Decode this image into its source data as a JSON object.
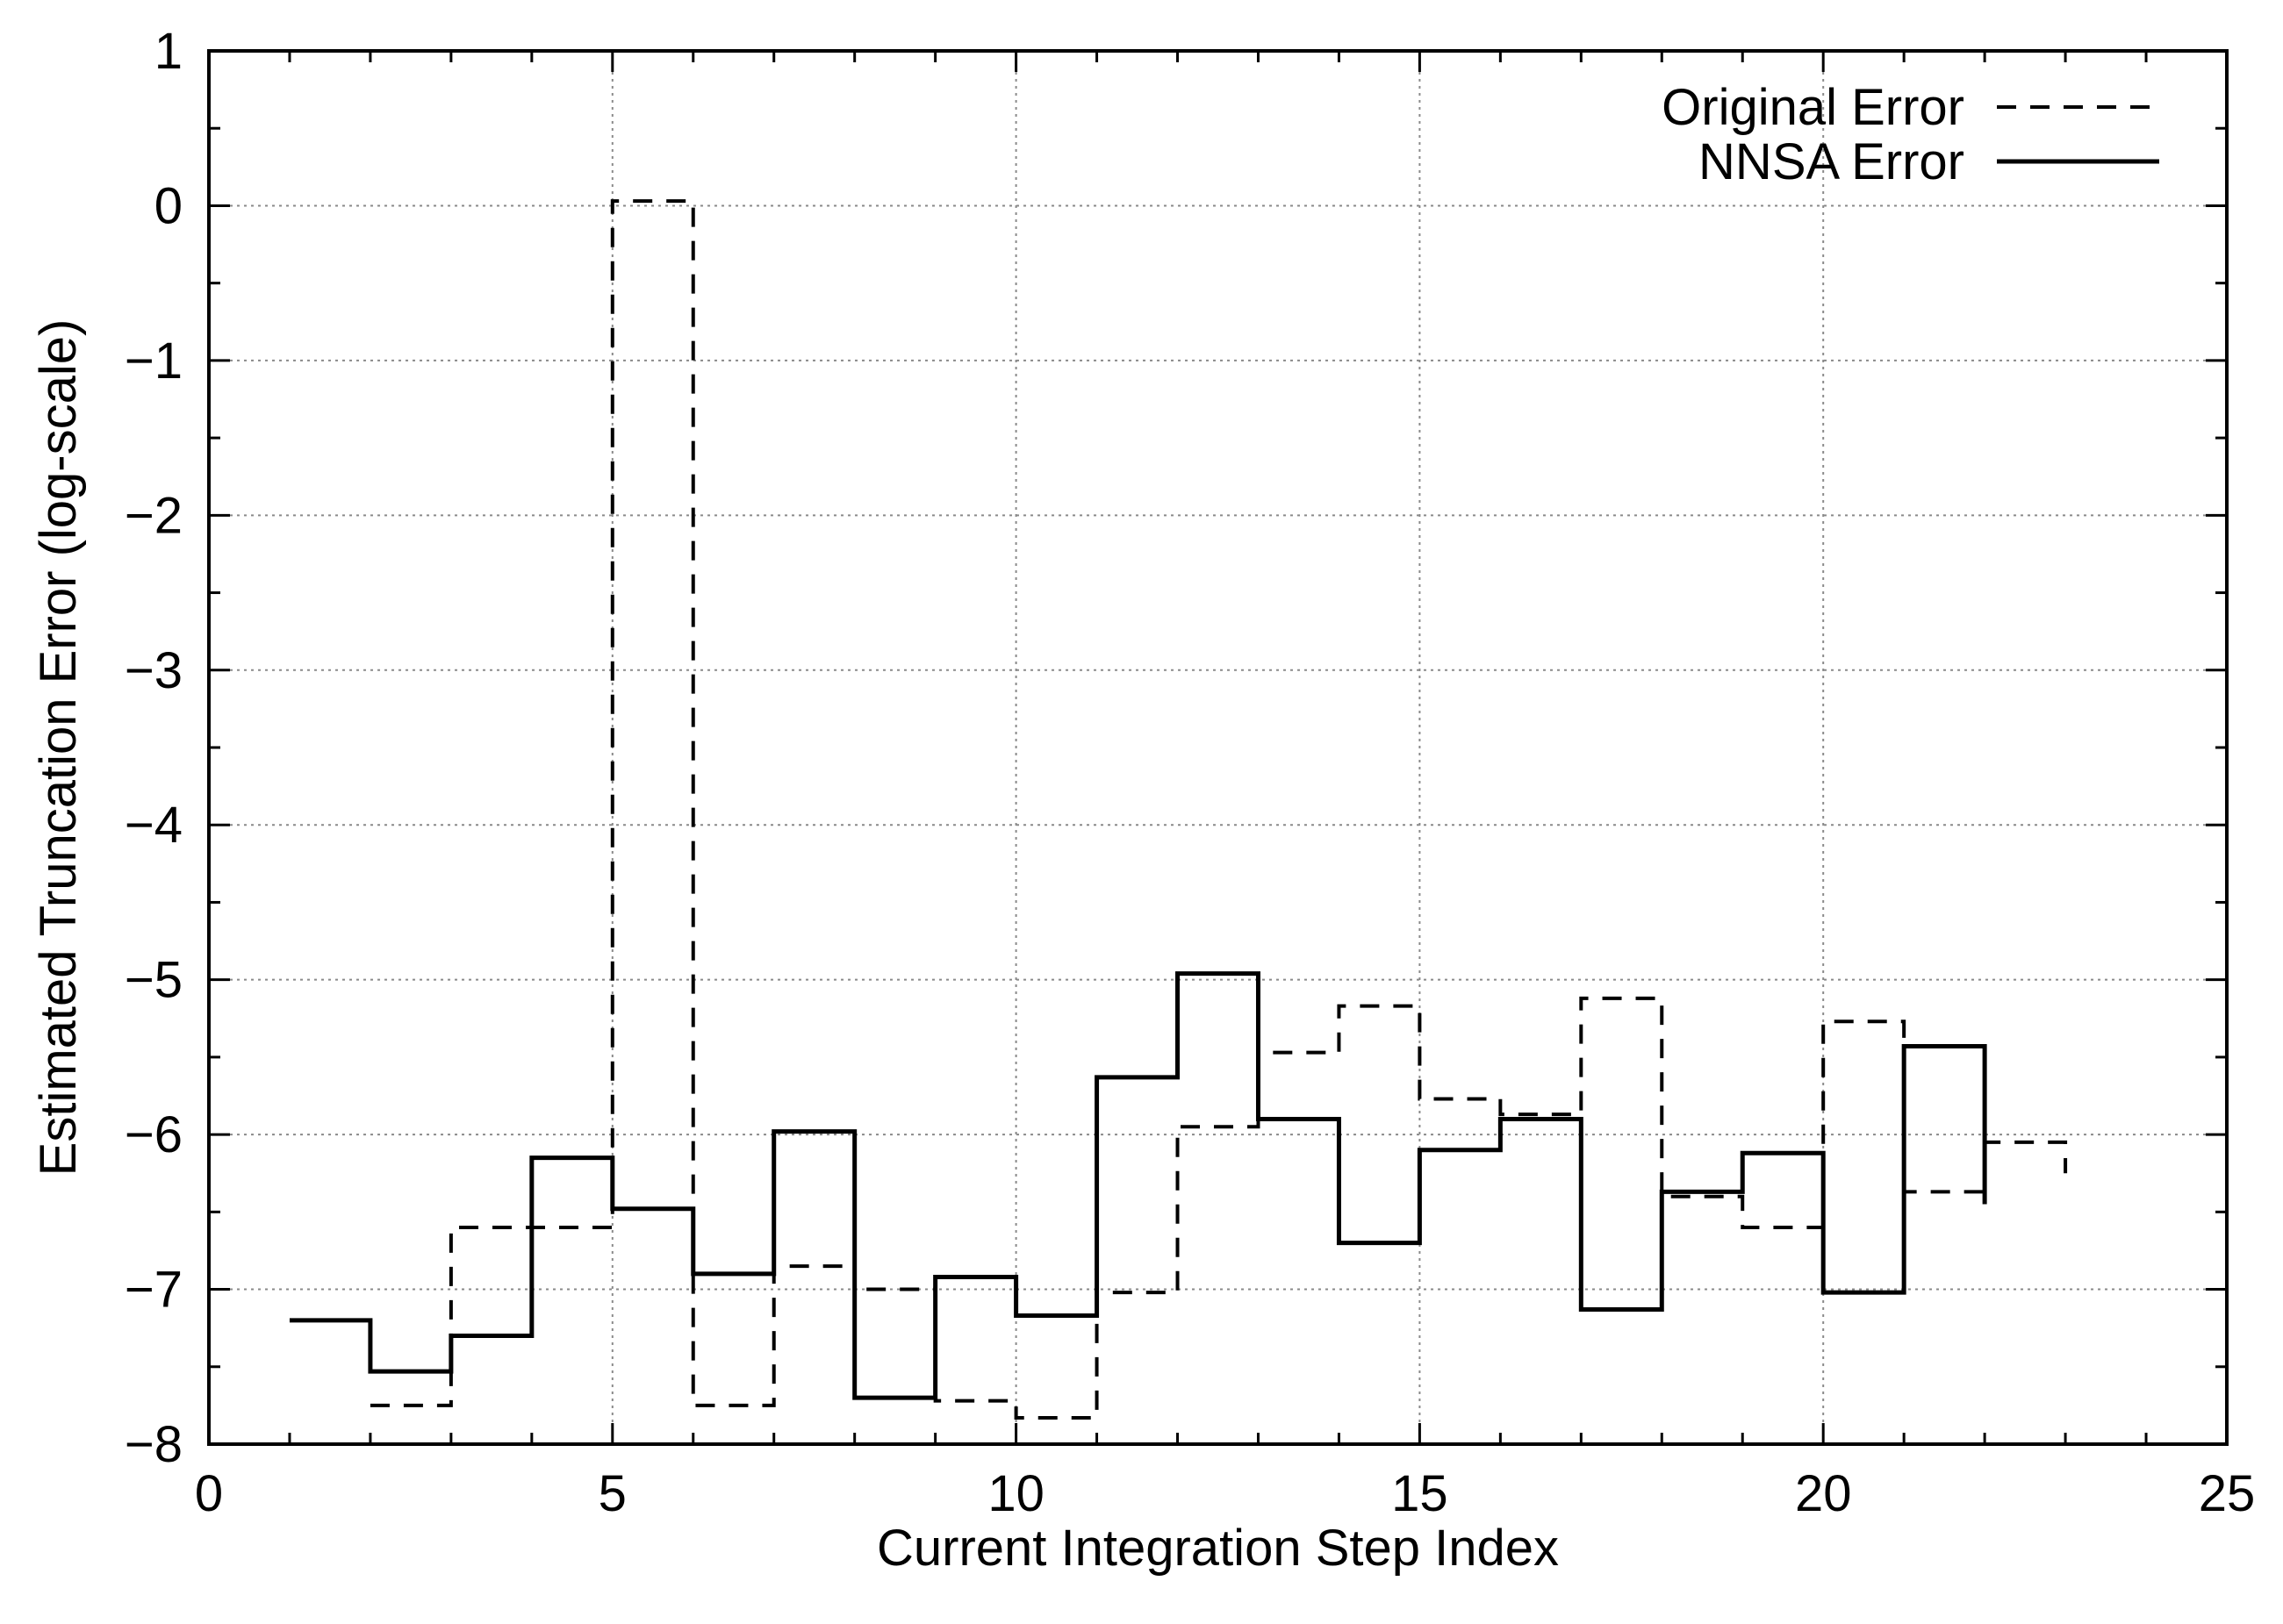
{
  "chart_data": {
    "type": "line",
    "step": true,
    "xlabel": "Current Integration Step Index",
    "ylabel": "Estimated Truncation Error (log-scale)",
    "xlim": [
      0,
      25
    ],
    "ylim": [
      -8,
      1
    ],
    "x_ticks": [
      0,
      5,
      10,
      15,
      20,
      25
    ],
    "x_tick_labels": [
      "0",
      "5",
      "10",
      "15",
      "20",
      "25"
    ],
    "y_ticks": [
      1,
      0,
      -1,
      -2,
      -3,
      -4,
      -5,
      -6,
      -7,
      -8
    ],
    "y_tick_labels": [
      "1",
      "0",
      "−1",
      "−2",
      "−3",
      "−4",
      "−5",
      "−6",
      "−7",
      "−8"
    ],
    "grid": true,
    "legend_position": "top-right",
    "series": [
      {
        "name": "Original Error",
        "style": "dashed",
        "color": "#000000",
        "x": [
          2,
          3,
          4,
          5,
          6,
          7,
          8,
          9,
          10,
          11,
          12,
          13,
          14,
          15,
          16,
          17,
          18,
          19,
          20,
          21,
          22,
          23
        ],
        "y": [
          -7.75,
          -6.6,
          -6.6,
          0.03,
          -7.75,
          -6.85,
          -7.0,
          -7.72,
          -7.83,
          -7.02,
          -5.95,
          -5.47,
          -5.17,
          -5.77,
          -5.87,
          -5.12,
          -6.4,
          -6.6,
          -5.27,
          -6.37,
          -6.05,
          -6.25
        ]
      },
      {
        "name": "NNSA Error",
        "style": "solid",
        "color": "#000000",
        "x": [
          1,
          2,
          3,
          4,
          5,
          6,
          7,
          8,
          9,
          10,
          11,
          12,
          13,
          14,
          15,
          16,
          17,
          18,
          19,
          20,
          21,
          22
        ],
        "y": [
          -7.2,
          -7.53,
          -7.3,
          -6.15,
          -6.48,
          -6.9,
          -5.98,
          -7.7,
          -6.92,
          -7.17,
          -5.63,
          -4.96,
          -5.9,
          -6.7,
          -6.1,
          -5.9,
          -7.13,
          -6.37,
          -6.12,
          -7.02,
          -5.43,
          -6.45
        ]
      }
    ]
  }
}
